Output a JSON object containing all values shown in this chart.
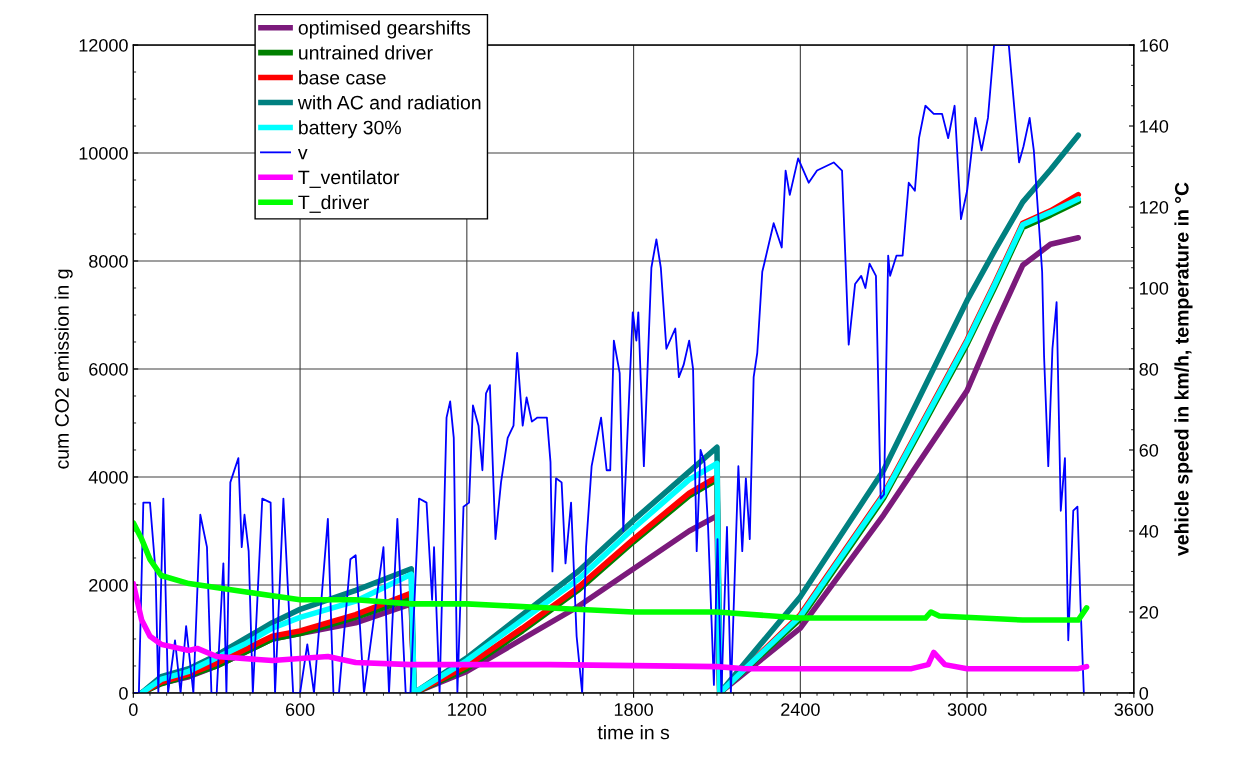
{
  "chart_data": {
    "type": "line",
    "xlabel": "time in s",
    "ylabel": "cum CO2 emission in g",
    "y2label": "vehicle speed in km/h, temperature in °C",
    "xlim": [
      0,
      3600
    ],
    "xticks": [
      0,
      600,
      1200,
      1800,
      2400,
      3000,
      3600
    ],
    "ylim": [
      0,
      12000
    ],
    "yticks": [
      0,
      2000,
      4000,
      6000,
      8000,
      10000,
      12000
    ],
    "y2lim": [
      0,
      160
    ],
    "y2ticks": [
      0,
      20,
      40,
      60,
      80,
      100,
      120,
      140,
      160
    ],
    "grid": true,
    "legend": "top left",
    "marker": "none",
    "line_style": "solid",
    "series": [
      {
        "name": "optimised gearshifts",
        "color": "#7b1a7b",
        "x": [
          30,
          100,
          200,
          300,
          400,
          500,
          600,
          800,
          1000,
          1010,
          1200,
          1400,
          1600,
          1800,
          2000,
          2100,
          2110,
          2400,
          2700,
          3000,
          3100,
          3200,
          3300,
          3400
        ],
        "values": [
          0,
          180,
          300,
          500,
          750,
          1000,
          1100,
          1300,
          1650,
          0,
          400,
          1000,
          1600,
          2300,
          3000,
          3280,
          0,
          1200,
          3300,
          5600,
          6800,
          7920,
          8310,
          8430
        ]
      },
      {
        "name": "untrained driver",
        "color": "#008000",
        "x": [
          30,
          100,
          200,
          300,
          400,
          500,
          600,
          800,
          1000,
          1010,
          1200,
          1400,
          1600,
          1800,
          2000,
          2100,
          2110,
          2400,
          2700,
          3000,
          3100,
          3200,
          3300,
          3400
        ],
        "values": [
          0,
          170,
          320,
          500,
          750,
          1000,
          1100,
          1400,
          1750,
          0,
          450,
          1150,
          1900,
          2800,
          3650,
          3950,
          0,
          1370,
          3610,
          6460,
          7520,
          8620,
          8850,
          9100
        ]
      },
      {
        "name": "base case",
        "color": "#ff0000",
        "x": [
          30,
          100,
          200,
          300,
          400,
          500,
          600,
          800,
          1000,
          1010,
          1200,
          1400,
          1600,
          1800,
          2000,
          2100,
          2110,
          2400,
          2700,
          3000,
          3100,
          3200,
          3300,
          3400
        ],
        "values": [
          0,
          200,
          350,
          550,
          800,
          1050,
          1150,
          1450,
          1850,
          0,
          500,
          1200,
          1950,
          2850,
          3700,
          4000,
          0,
          1450,
          3690,
          6540,
          7600,
          8700,
          8930,
          9230
        ]
      },
      {
        "name": "with AC and radiation",
        "color": "#008080",
        "x": [
          30,
          100,
          200,
          300,
          400,
          500,
          600,
          800,
          1000,
          1010,
          1200,
          1400,
          1600,
          1800,
          2000,
          2100,
          2110,
          2400,
          2700,
          3000,
          3100,
          3200,
          3300,
          3400
        ],
        "values": [
          0,
          300,
          450,
          700,
          1000,
          1300,
          1550,
          1900,
          2300,
          0,
          650,
          1450,
          2250,
          3200,
          4100,
          4550,
          0,
          1780,
          4130,
          7270,
          8200,
          9090,
          9690,
          10330
        ]
      },
      {
        "name": "battery 30%",
        "color": "#00ffff",
        "x": [
          30,
          100,
          200,
          300,
          400,
          500,
          600,
          800,
          1000,
          1010,
          1200,
          1400,
          1600,
          1800,
          2000,
          2100,
          2110,
          2400,
          2700,
          3000,
          3100,
          3200,
          3300,
          3400
        ],
        "values": [
          0,
          250,
          400,
          650,
          900,
          1200,
          1400,
          1700,
          2200,
          0,
          600,
          1350,
          2100,
          3050,
          3950,
          4250,
          0,
          1420,
          3660,
          6510,
          7570,
          8670,
          8900,
          9150
        ]
      },
      {
        "name": "v",
        "color": "#0000ff",
        "axis": "y2",
        "x": [
          0,
          20,
          36,
          60,
          80,
          90,
          108,
          125,
          150,
          170,
          190,
          216,
          241,
          265,
          281,
          300,
          324,
          335,
          349,
          378,
          390,
          400,
          415,
          430,
          464,
          494,
          510,
          540,
          575,
          600,
          626,
          650,
          700,
          720,
          740,
          781,
          800,
          830,
          900,
          920,
          950,
          980,
          997,
          1028,
          1055,
          1075,
          1082,
          1102,
          1127,
          1140,
          1153,
          1166,
          1188,
          1208,
          1222,
          1242,
          1256,
          1269,
          1283,
          1303,
          1323,
          1347,
          1368,
          1381,
          1401,
          1415,
          1434,
          1454,
          1488,
          1501,
          1508,
          1521,
          1541,
          1555,
          1575,
          1595,
          1615,
          1629,
          1649,
          1683,
          1703,
          1716,
          1729,
          1750,
          1763,
          1797,
          1810,
          1817,
          1837,
          1864,
          1882,
          1898,
          1918,
          1950,
          1963,
          1980,
          2000,
          2014,
          2027,
          2041,
          2055,
          2068,
          2089,
          2102,
          2116,
          2136,
          2150,
          2177,
          2191,
          2204,
          2218,
          2232,
          2245,
          2263,
          2270,
          2304,
          2333,
          2347,
          2362,
          2392,
          2430,
          2460,
          2520,
          2550,
          2574,
          2597,
          2619,
          2634,
          2649,
          2672,
          2689,
          2701,
          2716,
          2723,
          2746,
          2768,
          2790,
          2812,
          2827,
          2850,
          2880,
          2910,
          2932,
          2955,
          2978,
          3000,
          3030,
          3052,
          3075,
          3097,
          3150,
          3187,
          3203,
          3225,
          3240,
          3270,
          3277,
          3292,
          3307,
          3322,
          3337,
          3352,
          3364,
          3382,
          3397,
          3408,
          3420
        ],
        "values": [
          0,
          0,
          47,
          47,
          30,
          0,
          48,
          0,
          13,
          0,
          16.5,
          0,
          44,
          36,
          0,
          0,
          32,
          0,
          52,
          58,
          36,
          44,
          35,
          0,
          48,
          47,
          0,
          48,
          0,
          0,
          12,
          0,
          43,
          0,
          0,
          33,
          34,
          0,
          36,
          0,
          43,
          0,
          0,
          48,
          47,
          23,
          36,
          0,
          68,
          72,
          63,
          0,
          46,
          47,
          71,
          66,
          55,
          74,
          76,
          38,
          52,
          63,
          66,
          84,
          66,
          73,
          67,
          68,
          68,
          57,
          30,
          53,
          52,
          32,
          47,
          14,
          0,
          36,
          56,
          68,
          55,
          55,
          87,
          79,
          40,
          94,
          87,
          94,
          56,
          105,
          112,
          105,
          85,
          90,
          78,
          81,
          87,
          80,
          35,
          60,
          57,
          41,
          2,
          38,
          0,
          41,
          0,
          56,
          35,
          53,
          38,
          78,
          84,
          104,
          106,
          116,
          110,
          129,
          123,
          132,
          126,
          129,
          131,
          129,
          86,
          101,
          103,
          100,
          106,
          103,
          48,
          49,
          108,
          103,
          108,
          108,
          126,
          124,
          137,
          145,
          143,
          143,
          137,
          145,
          117,
          124,
          142,
          134,
          142,
          160,
          160,
          131,
          135,
          142,
          134,
          104,
          83,
          56,
          85,
          96.5,
          45,
          58,
          13,
          45,
          46,
          22,
          0
        ]
      },
      {
        "name": "T_ventilator",
        "color": "#ff00ff",
        "axis": "y2",
        "x": [
          0,
          30,
          60,
          100,
          200,
          230,
          300,
          500,
          700,
          800,
          1000,
          1500,
          2100,
          2200,
          2800,
          2860,
          2880,
          2920,
          3000,
          3400,
          3430
        ],
        "values": [
          27,
          18,
          14,
          12,
          10.5,
          11,
          9,
          8,
          9,
          7.5,
          7,
          7,
          6.5,
          6,
          6,
          7,
          10,
          7,
          6,
          6,
          6.5
        ]
      },
      {
        "name": "T_driver",
        "color": "#00ff00",
        "axis": "y2",
        "x": [
          0,
          30,
          60,
          100,
          200,
          400,
          600,
          800,
          1000,
          1200,
          1500,
          1800,
          2100,
          2400,
          2850,
          2870,
          2900,
          3200,
          3400,
          3430
        ],
        "values": [
          42,
          38,
          33,
          29,
          27,
          25,
          23,
          23,
          22,
          22,
          21,
          20,
          20,
          18.5,
          18.5,
          20,
          19,
          18,
          18,
          21
        ]
      }
    ]
  }
}
